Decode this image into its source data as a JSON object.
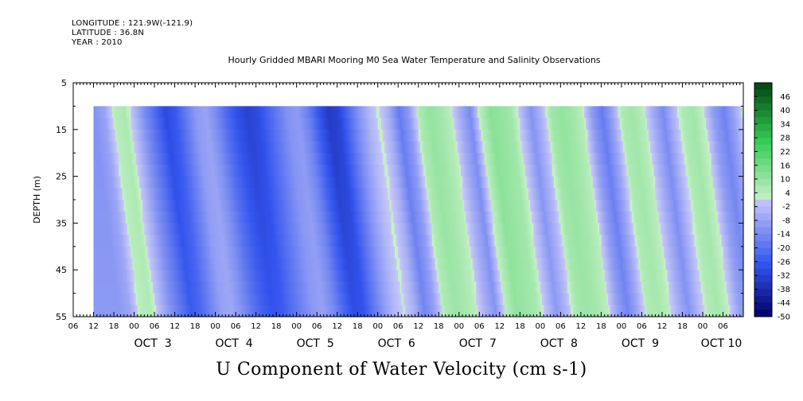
{
  "header": {
    "longitude": "LONGITUDE : 121.9W(-121.9)",
    "latitude": "LATITUDE : 36.8N",
    "year": "YEAR : 2010",
    "title": "Hourly Gridded MBARI Mooring M0 Sea Water Temperature and Salinity Observations"
  },
  "colors": {
    "negative_darkest": "#000066",
    "negative_mid": "#3355ee",
    "near_zero_negative": "#c8c8f8",
    "near_zero_positive": "#c8f0c8",
    "positive_mid": "#33cc55",
    "positive_darkest": "#004411",
    "missing": "#ffffff"
  },
  "chart_data": {
    "type": "heatmap",
    "title": "Hourly Gridded MBARI Mooring M0 Sea Water Temperature and Salinity Observations",
    "xlabel": "U Component of Water Velocity (cm s-1)",
    "ylabel": "DEPTH (m)",
    "x_unit": "hours since 2010-10-02 06:00",
    "xlim_hours": [
      0,
      198
    ],
    "data_start_hour": 6,
    "ylim": [
      55,
      5
    ],
    "data_depth_range": [
      10,
      55
    ],
    "y_ticks": [
      5,
      15,
      25,
      35,
      45,
      55
    ],
    "x_hour_labels": [
      "06",
      "12",
      "18",
      "00",
      "06",
      "12",
      "18",
      "00",
      "06",
      "12",
      "18",
      "00",
      "06",
      "12",
      "18",
      "00",
      "06",
      "12",
      "18",
      "00",
      "06",
      "12",
      "18",
      "00",
      "06",
      "12",
      "18",
      "00",
      "06",
      "12",
      "18",
      "00",
      "06"
    ],
    "date_labels": [
      {
        "label": "OCT  3",
        "hour": 24
      },
      {
        "label": "OCT  4",
        "hour": 48
      },
      {
        "label": "OCT  5",
        "hour": 72
      },
      {
        "label": "OCT  6",
        "hour": 96
      },
      {
        "label": "OCT  7",
        "hour": 120
      },
      {
        "label": "OCT  8",
        "hour": 144
      },
      {
        "label": "OCT  9",
        "hour": 168
      },
      {
        "label": "OCT 10",
        "hour": 192
      }
    ],
    "colorbar": {
      "levels": [
        46,
        40,
        34,
        28,
        22,
        16,
        10,
        4,
        -2,
        -8,
        -14,
        -20,
        -26,
        -32,
        -38,
        -44,
        -50
      ],
      "min": -50,
      "max": 52,
      "step": 3
    },
    "velocity_profile": {
      "hours": [
        6,
        9,
        12,
        15,
        18,
        21,
        24,
        27,
        30,
        33,
        36,
        39,
        42,
        45,
        48,
        51,
        54,
        57,
        60,
        63,
        66,
        69,
        72,
        75,
        78,
        81,
        84,
        87,
        90,
        93,
        96,
        99,
        102,
        105,
        108,
        111,
        114,
        117,
        120,
        123,
        126,
        129,
        132,
        135,
        138,
        141,
        144,
        147,
        150,
        153,
        156,
        159,
        162,
        165,
        168,
        171,
        174,
        177,
        180,
        183,
        186,
        189,
        192,
        195,
        198
      ],
      "surface_values": [
        -12,
        -8,
        4,
        6,
        -4,
        -14,
        -22,
        -30,
        -26,
        -18,
        -10,
        -8,
        -14,
        -22,
        -28,
        -32,
        -30,
        -24,
        -18,
        -12,
        -10,
        -16,
        -26,
        -34,
        -32,
        -22,
        -12,
        -4,
        2,
        -6,
        -18,
        -10,
        6,
        10,
        8,
        4,
        -6,
        -14,
        4,
        12,
        10,
        8,
        -2,
        -12,
        -4,
        8,
        10,
        8,
        4,
        -10,
        -18,
        -8,
        6,
        8,
        4,
        -6,
        -14,
        -4,
        6,
        8,
        2,
        -10,
        -16,
        -8,
        4
      ],
      "tilt_hours_per_45m": 8
    }
  }
}
